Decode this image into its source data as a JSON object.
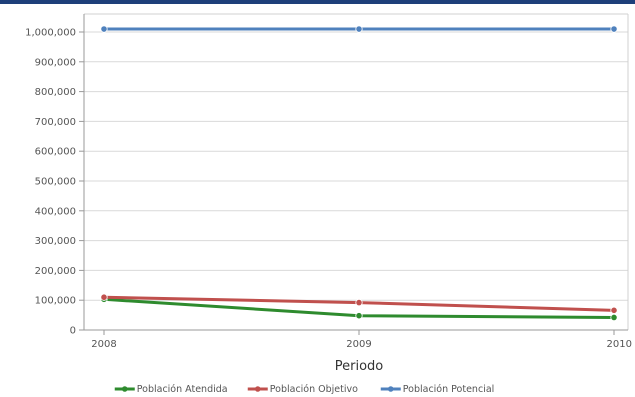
{
  "chart_data": {
    "type": "line",
    "categories": [
      "2008",
      "2009",
      "2010"
    ],
    "series": [
      {
        "name": "Población Atendida",
        "color": "#2e8b2e",
        "values": [
          103000,
          48000,
          42000
        ]
      },
      {
        "name": "Población Objetivo",
        "color": "#c0504d",
        "values": [
          110000,
          92000,
          66000
        ]
      },
      {
        "name": "Población Potencial",
        "color": "#4f81bd",
        "values": [
          1010000,
          1010000,
          1010000
        ]
      }
    ],
    "xlabel": "Periodo",
    "ylabel": "",
    "ylim": [
      0,
      1000000
    ],
    "yticks": [
      "0",
      "100,000",
      "200,000",
      "300,000",
      "400,000",
      "500,000",
      "600,000",
      "700,000",
      "800,000",
      "900,000",
      "1,000,000"
    ],
    "grid": true,
    "legend_position": "bottom"
  }
}
